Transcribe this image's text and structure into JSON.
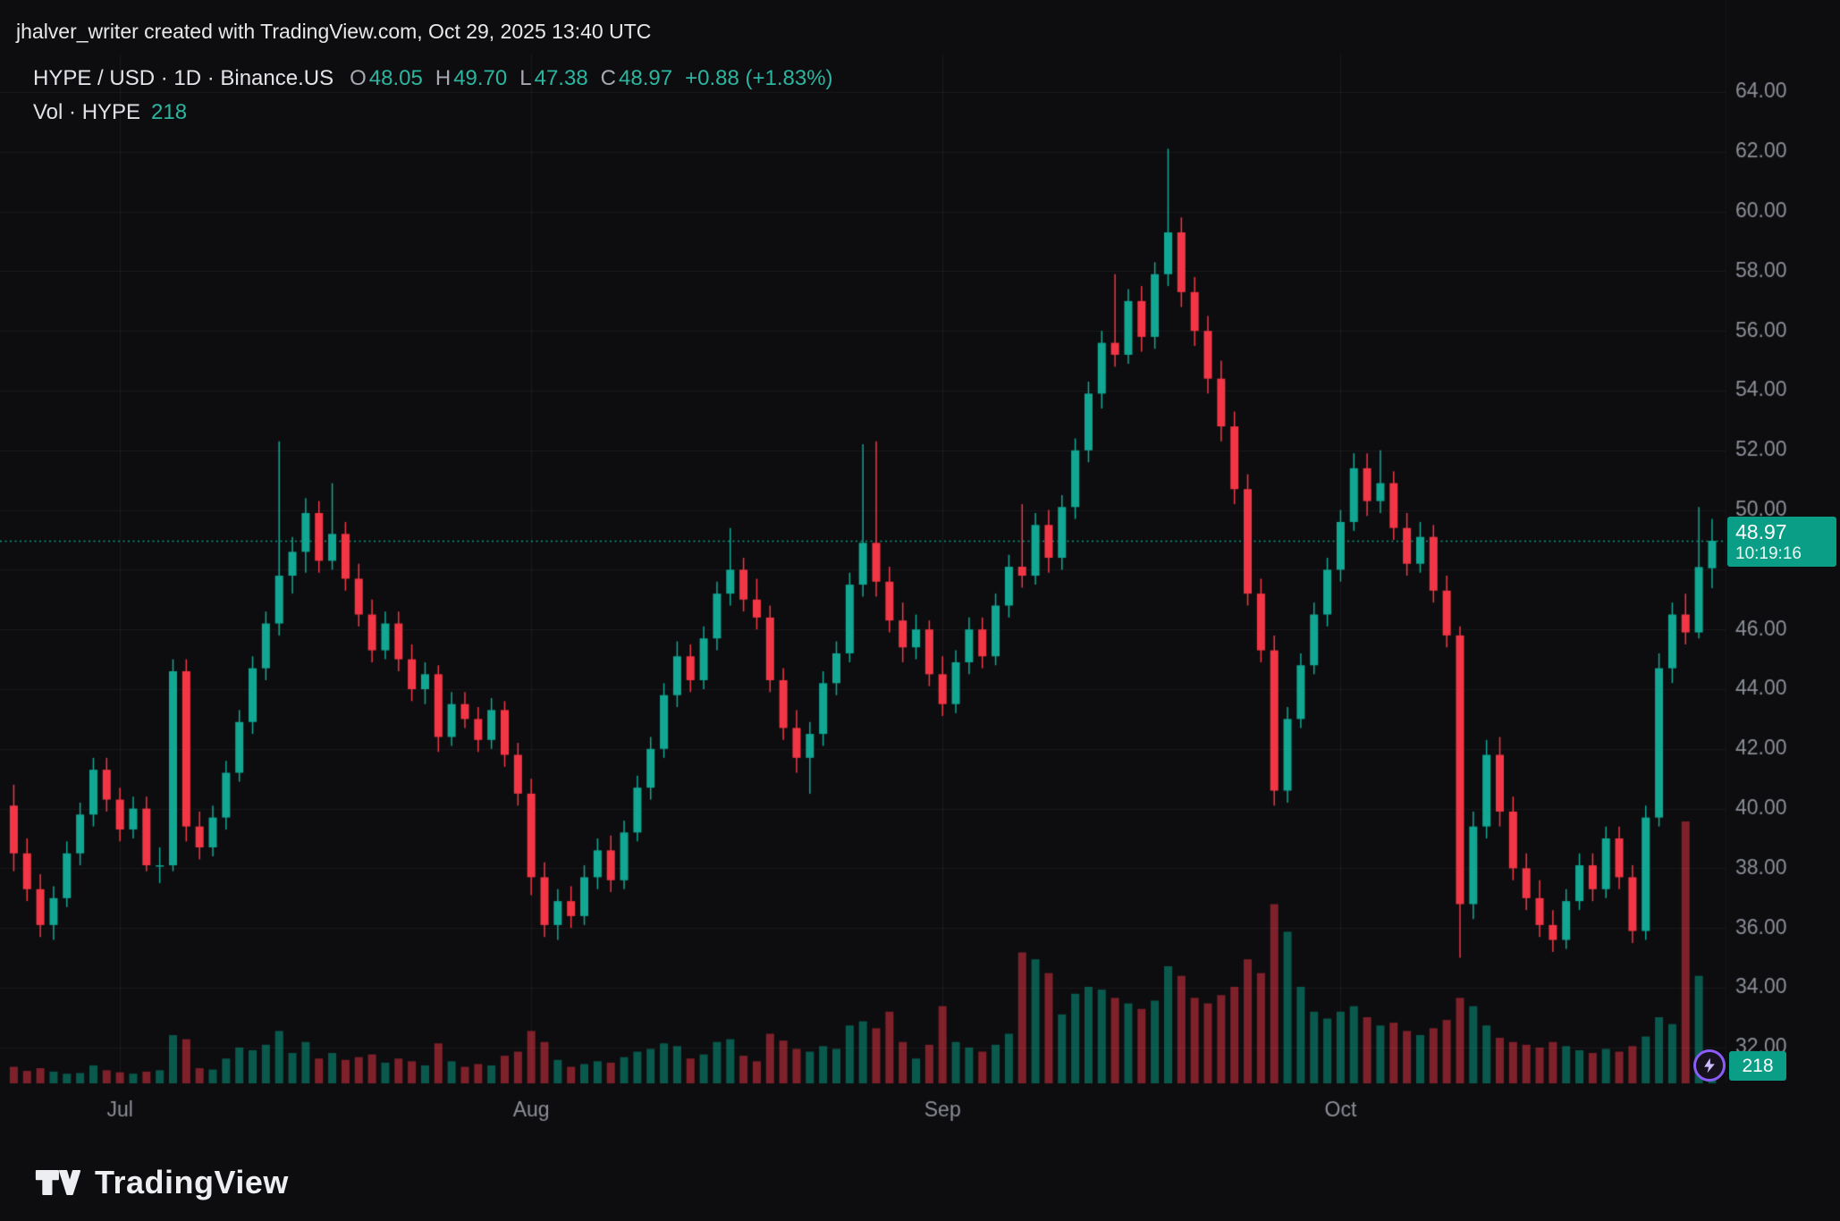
{
  "header": {
    "attribution": "jhalver_writer created with TradingView.com, Oct 29, 2025 13:40 UTC"
  },
  "legend": {
    "symbol_line": "HYPE / USD · 1D · Binance.US",
    "ohlc": [
      {
        "k": "O",
        "v": "48.05"
      },
      {
        "k": "H",
        "v": "49.70"
      },
      {
        "k": "L",
        "v": "47.38"
      },
      {
        "k": "C",
        "v": "48.97"
      }
    ],
    "change": "+0.88 (+1.83%)",
    "vol_label": "Vol · HYPE",
    "vol_value": "218"
  },
  "footer": {
    "logo_text": "TradingView"
  },
  "chart_data": {
    "type": "candlestick",
    "symbol": "HYPE / USD",
    "interval": "1D",
    "exchange": "Binance.US",
    "last_price": 48.97,
    "last_price_label": {
      "price": "48.97",
      "countdown": "10:19:16"
    },
    "volume_label": "218",
    "ylim": [
      32,
      64
    ],
    "y_tick_step": 2,
    "y_ticks": [
      "64.00",
      "62.00",
      "60.00",
      "58.00",
      "56.00",
      "54.00",
      "52.00",
      "50.00",
      "46.00",
      "44.00",
      "42.00",
      "40.00",
      "38.00",
      "36.00",
      "34.00",
      "32.00"
    ],
    "x_labels": [
      {
        "label": "Jul",
        "index": 8
      },
      {
        "label": "Aug",
        "index": 39
      },
      {
        "label": "Sep",
        "index": 70
      },
      {
        "label": "Oct",
        "index": 100
      }
    ],
    "colors": {
      "bg": "#0d0d0f",
      "up": "#11a793",
      "down": "#f23645",
      "vol_up": "rgba(8,153,129,0.55)",
      "vol_down": "rgba(242,54,69,0.5)",
      "grid": "rgba(255,255,255,0.055)",
      "axis_text": "#8c8f98",
      "dotted_line": "#0a9e84",
      "badge": "#0a9e87"
    },
    "candles": [
      [
        "2025-06-23",
        40.1,
        40.8,
        37.9,
        38.5,
        120
      ],
      [
        "2025-06-24",
        38.5,
        39.0,
        36.9,
        37.3,
        90
      ],
      [
        "2025-06-25",
        37.3,
        37.8,
        35.7,
        36.1,
        110
      ],
      [
        "2025-06-26",
        36.1,
        37.4,
        35.6,
        37.0,
        85
      ],
      [
        "2025-06-27",
        37.0,
        38.9,
        36.7,
        38.5,
        70
      ],
      [
        "2025-06-28",
        38.5,
        40.2,
        38.1,
        39.8,
        75
      ],
      [
        "2025-06-29",
        39.8,
        41.7,
        39.4,
        41.3,
        130
      ],
      [
        "2025-06-30",
        41.3,
        41.7,
        39.9,
        40.3,
        95
      ],
      [
        "2025-07-01",
        40.3,
        40.7,
        38.9,
        39.3,
        80
      ],
      [
        "2025-07-02",
        39.3,
        40.4,
        39.0,
        40.0,
        70
      ],
      [
        "2025-07-03",
        40.0,
        40.4,
        37.9,
        38.1,
        85
      ],
      [
        "2025-07-04",
        38.1,
        38.7,
        37.5,
        38.1,
        95
      ],
      [
        "2025-07-05",
        38.1,
        45.0,
        37.9,
        44.6,
        350
      ],
      [
        "2025-07-06",
        44.6,
        45.0,
        38.9,
        39.4,
        320
      ],
      [
        "2025-07-07",
        39.4,
        39.9,
        38.3,
        38.7,
        110
      ],
      [
        "2025-07-08",
        38.7,
        40.1,
        38.4,
        39.7,
        100
      ],
      [
        "2025-07-09",
        39.7,
        41.6,
        39.3,
        41.2,
        180
      ],
      [
        "2025-07-10",
        41.2,
        43.3,
        40.9,
        42.9,
        260
      ],
      [
        "2025-07-11",
        42.9,
        45.1,
        42.5,
        44.7,
        240
      ],
      [
        "2025-07-12",
        44.7,
        46.6,
        44.3,
        46.2,
        280
      ],
      [
        "2025-07-13",
        46.2,
        52.3,
        45.8,
        47.8,
        380
      ],
      [
        "2025-07-14",
        47.8,
        49.1,
        47.2,
        48.6,
        220
      ],
      [
        "2025-07-15",
        48.6,
        50.4,
        47.9,
        49.9,
        300
      ],
      [
        "2025-07-16",
        49.9,
        50.3,
        47.9,
        48.3,
        180
      ],
      [
        "2025-07-17",
        48.3,
        50.9,
        48.0,
        49.2,
        220
      ],
      [
        "2025-07-18",
        49.2,
        49.6,
        47.3,
        47.7,
        170
      ],
      [
        "2025-07-19",
        47.7,
        48.2,
        46.1,
        46.5,
        190
      ],
      [
        "2025-07-20",
        46.5,
        47.0,
        44.9,
        45.3,
        210
      ],
      [
        "2025-07-21",
        45.3,
        46.6,
        45.0,
        46.2,
        150
      ],
      [
        "2025-07-22",
        46.2,
        46.6,
        44.6,
        45.0,
        180
      ],
      [
        "2025-07-23",
        45.0,
        45.5,
        43.6,
        44.0,
        160
      ],
      [
        "2025-07-24",
        44.0,
        44.9,
        43.5,
        44.5,
        130
      ],
      [
        "2025-07-25",
        44.5,
        44.8,
        41.9,
        42.4,
        290
      ],
      [
        "2025-07-26",
        42.4,
        43.9,
        42.1,
        43.5,
        160
      ],
      [
        "2025-07-27",
        43.5,
        43.9,
        42.7,
        43.0,
        120
      ],
      [
        "2025-07-28",
        43.0,
        43.4,
        41.9,
        42.3,
        140
      ],
      [
        "2025-07-29",
        42.3,
        43.7,
        42.0,
        43.3,
        130
      ],
      [
        "2025-07-30",
        43.3,
        43.6,
        41.4,
        41.8,
        200
      ],
      [
        "2025-07-31",
        41.8,
        42.2,
        40.1,
        40.5,
        230
      ],
      [
        "2025-08-01",
        40.5,
        41.0,
        37.1,
        37.7,
        380
      ],
      [
        "2025-08-02",
        37.7,
        38.2,
        35.7,
        36.1,
        300
      ],
      [
        "2025-08-03",
        36.1,
        37.3,
        35.6,
        36.9,
        170
      ],
      [
        "2025-08-04",
        36.9,
        37.4,
        36.0,
        36.4,
        120
      ],
      [
        "2025-08-05",
        36.4,
        38.1,
        36.1,
        37.7,
        140
      ],
      [
        "2025-08-06",
        37.7,
        39.0,
        37.3,
        38.6,
        160
      ],
      [
        "2025-08-07",
        38.6,
        39.1,
        37.2,
        37.6,
        150
      ],
      [
        "2025-08-08",
        37.6,
        39.6,
        37.3,
        39.2,
        190
      ],
      [
        "2025-08-09",
        39.2,
        41.1,
        38.9,
        40.7,
        230
      ],
      [
        "2025-08-10",
        40.7,
        42.4,
        40.3,
        42.0,
        250
      ],
      [
        "2025-08-11",
        42.0,
        44.2,
        41.7,
        43.8,
        290
      ],
      [
        "2025-08-12",
        43.8,
        45.6,
        43.4,
        45.1,
        270
      ],
      [
        "2025-08-13",
        45.1,
        45.5,
        43.9,
        44.3,
        180
      ],
      [
        "2025-08-14",
        44.3,
        46.1,
        44.0,
        45.7,
        210
      ],
      [
        "2025-08-15",
        45.7,
        47.6,
        45.3,
        47.2,
        300
      ],
      [
        "2025-08-16",
        47.2,
        49.4,
        46.8,
        48.0,
        320
      ],
      [
        "2025-08-17",
        48.0,
        48.4,
        46.6,
        47.0,
        200
      ],
      [
        "2025-08-18",
        47.0,
        47.7,
        46.0,
        46.4,
        160
      ],
      [
        "2025-08-19",
        46.4,
        46.8,
        43.9,
        44.3,
        360
      ],
      [
        "2025-08-20",
        44.3,
        44.7,
        42.3,
        42.7,
        310
      ],
      [
        "2025-08-21",
        42.7,
        43.3,
        41.2,
        41.7,
        250
      ],
      [
        "2025-08-22",
        41.7,
        42.9,
        40.5,
        42.5,
        230
      ],
      [
        "2025-08-23",
        42.5,
        44.6,
        42.1,
        44.2,
        270
      ],
      [
        "2025-08-24",
        44.2,
        45.6,
        43.8,
        45.2,
        250
      ],
      [
        "2025-08-25",
        45.2,
        47.9,
        44.9,
        47.5,
        420
      ],
      [
        "2025-08-26",
        47.5,
        52.2,
        47.1,
        48.9,
        450
      ],
      [
        "2025-08-27",
        48.9,
        52.3,
        47.1,
        47.6,
        400
      ],
      [
        "2025-08-28",
        47.6,
        48.1,
        45.9,
        46.3,
        520
      ],
      [
        "2025-08-29",
        46.3,
        46.9,
        44.9,
        45.4,
        300
      ],
      [
        "2025-08-30",
        45.4,
        46.5,
        45.0,
        46.0,
        180
      ],
      [
        "2025-08-31",
        46.0,
        46.3,
        44.1,
        44.5,
        280
      ],
      [
        "2025-09-01",
        44.5,
        45.1,
        43.1,
        43.5,
        560
      ],
      [
        "2025-09-02",
        43.5,
        45.3,
        43.2,
        44.9,
        300
      ],
      [
        "2025-09-03",
        44.9,
        46.4,
        44.5,
        46.0,
        260
      ],
      [
        "2025-09-04",
        46.0,
        46.4,
        44.7,
        45.1,
        230
      ],
      [
        "2025-09-05",
        45.1,
        47.2,
        44.8,
        46.8,
        280
      ],
      [
        "2025-09-06",
        46.8,
        48.5,
        46.4,
        48.1,
        360
      ],
      [
        "2025-09-07",
        48.1,
        50.2,
        47.4,
        47.8,
        950
      ],
      [
        "2025-09-08",
        47.8,
        49.9,
        47.5,
        49.5,
        900
      ],
      [
        "2025-09-09",
        49.5,
        50.0,
        47.9,
        48.4,
        800
      ],
      [
        "2025-09-10",
        48.4,
        50.5,
        48.0,
        50.1,
        500
      ],
      [
        "2025-09-11",
        50.1,
        52.4,
        49.7,
        52.0,
        650
      ],
      [
        "2025-09-12",
        52.0,
        54.3,
        51.6,
        53.9,
        700
      ],
      [
        "2025-09-13",
        53.9,
        56.0,
        53.4,
        55.6,
        680
      ],
      [
        "2025-09-14",
        55.6,
        57.9,
        54.8,
        55.2,
        620
      ],
      [
        "2025-09-15",
        55.2,
        57.4,
        54.9,
        57.0,
        580
      ],
      [
        "2025-09-16",
        57.0,
        57.5,
        55.3,
        55.8,
        540
      ],
      [
        "2025-09-17",
        55.8,
        58.3,
        55.4,
        57.9,
        600
      ],
      [
        "2025-09-18",
        57.9,
        62.1,
        57.5,
        59.3,
        850
      ],
      [
        "2025-09-19",
        59.3,
        59.8,
        56.8,
        57.3,
        780
      ],
      [
        "2025-09-20",
        57.3,
        57.8,
        55.5,
        56.0,
        620
      ],
      [
        "2025-09-21",
        56.0,
        56.5,
        53.9,
        54.4,
        580
      ],
      [
        "2025-09-22",
        54.4,
        55.0,
        52.3,
        52.8,
        640
      ],
      [
        "2025-09-23",
        52.8,
        53.3,
        50.2,
        50.7,
        700
      ],
      [
        "2025-09-24",
        50.7,
        51.2,
        46.8,
        47.2,
        900
      ],
      [
        "2025-09-25",
        47.2,
        47.7,
        44.9,
        45.3,
        800
      ],
      [
        "2025-09-26",
        45.3,
        45.8,
        40.1,
        40.6,
        1300
      ],
      [
        "2025-09-27",
        40.6,
        43.4,
        40.2,
        43.0,
        1100
      ],
      [
        "2025-09-28",
        43.0,
        45.2,
        42.7,
        44.8,
        700
      ],
      [
        "2025-09-29",
        44.8,
        46.9,
        44.5,
        46.5,
        520
      ],
      [
        "2025-09-30",
        46.5,
        48.4,
        46.1,
        48.0,
        470
      ],
      [
        "2025-10-01",
        48.0,
        50.0,
        47.6,
        49.6,
        520
      ],
      [
        "2025-10-02",
        49.6,
        51.9,
        49.3,
        51.4,
        560
      ],
      [
        "2025-10-03",
        51.4,
        51.9,
        49.8,
        50.3,
        480
      ],
      [
        "2025-10-04",
        50.3,
        52.0,
        49.9,
        50.9,
        420
      ],
      [
        "2025-10-05",
        50.9,
        51.3,
        49.0,
        49.4,
        440
      ],
      [
        "2025-10-06",
        49.4,
        49.9,
        47.8,
        48.2,
        380
      ],
      [
        "2025-10-07",
        48.2,
        49.6,
        47.9,
        49.1,
        350
      ],
      [
        "2025-10-08",
        49.1,
        49.5,
        46.9,
        47.3,
        400
      ],
      [
        "2025-10-09",
        47.3,
        47.8,
        45.4,
        45.8,
        460
      ],
      [
        "2025-10-10",
        45.8,
        46.1,
        35.0,
        36.8,
        620
      ],
      [
        "2025-10-11",
        36.8,
        39.9,
        36.3,
        39.4,
        560
      ],
      [
        "2025-10-12",
        39.4,
        42.3,
        39.0,
        41.8,
        420
      ],
      [
        "2025-10-13",
        41.8,
        42.4,
        39.4,
        39.9,
        330
      ],
      [
        "2025-10-14",
        39.9,
        40.4,
        37.6,
        38.0,
        300
      ],
      [
        "2025-10-15",
        38.0,
        38.5,
        36.6,
        37.0,
        280
      ],
      [
        "2025-10-16",
        37.0,
        37.6,
        35.7,
        36.1,
        260
      ],
      [
        "2025-10-17",
        36.1,
        36.6,
        35.2,
        35.6,
        300
      ],
      [
        "2025-10-18",
        35.6,
        37.3,
        35.3,
        36.9,
        270
      ],
      [
        "2025-10-19",
        36.9,
        38.5,
        36.6,
        38.1,
        240
      ],
      [
        "2025-10-20",
        38.1,
        38.5,
        36.9,
        37.3,
        220
      ],
      [
        "2025-10-21",
        37.3,
        39.4,
        37.0,
        39.0,
        250
      ],
      [
        "2025-10-22",
        39.0,
        39.4,
        37.3,
        37.7,
        230
      ],
      [
        "2025-10-23",
        37.7,
        38.1,
        35.5,
        35.9,
        270
      ],
      [
        "2025-10-24",
        35.9,
        40.1,
        35.6,
        39.7,
        340
      ],
      [
        "2025-10-25",
        39.7,
        45.2,
        39.4,
        44.7,
        480
      ],
      [
        "2025-10-26",
        44.7,
        46.9,
        44.2,
        46.5,
        430
      ],
      [
        "2025-10-27",
        46.5,
        47.2,
        45.5,
        45.9,
        1900
      ],
      [
        "2025-10-28",
        45.9,
        50.1,
        45.7,
        48.09,
        780
      ],
      [
        "2025-10-29",
        48.05,
        49.7,
        47.38,
        48.97,
        218
      ]
    ]
  }
}
